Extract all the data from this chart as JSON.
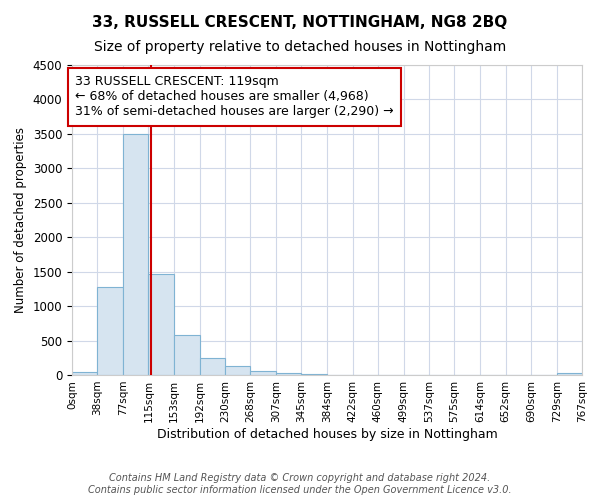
{
  "title": "33, RUSSELL CRESCENT, NOTTINGHAM, NG8 2BQ",
  "subtitle": "Size of property relative to detached houses in Nottingham",
  "xlabel": "Distribution of detached houses by size in Nottingham",
  "ylabel": "Number of detached properties",
  "bin_edges": [
    0,
    38,
    77,
    115,
    153,
    192,
    230,
    268,
    307,
    345,
    384,
    422,
    460,
    499,
    537,
    575,
    614,
    652,
    690,
    729,
    767
  ],
  "bin_counts": [
    40,
    1280,
    3500,
    1460,
    575,
    245,
    130,
    60,
    25,
    8,
    5,
    3,
    2,
    1,
    0,
    0,
    0,
    0,
    0,
    30
  ],
  "bar_color": "#d6e4f0",
  "bar_edge_color": "#7fb3d3",
  "vline_x": 119,
  "vline_color": "#cc0000",
  "annotation_text": "33 RUSSELL CRESCENT: 119sqm\n← 68% of detached houses are smaller (4,968)\n31% of semi-detached houses are larger (2,290) →",
  "annotation_box_color": "#ffffff",
  "annotation_box_edge": "#cc0000",
  "ylim": [
    0,
    4500
  ],
  "yticks": [
    0,
    500,
    1000,
    1500,
    2000,
    2500,
    3000,
    3500,
    4000,
    4500
  ],
  "tick_labels": [
    "0sqm",
    "38sqm",
    "77sqm",
    "115sqm",
    "153sqm",
    "192sqm",
    "230sqm",
    "268sqm",
    "307sqm",
    "345sqm",
    "384sqm",
    "422sqm",
    "460sqm",
    "499sqm",
    "537sqm",
    "575sqm",
    "614sqm",
    "652sqm",
    "690sqm",
    "729sqm",
    "767sqm"
  ],
  "footer": "Contains HM Land Registry data © Crown copyright and database right 2024.\nContains public sector information licensed under the Open Government Licence v3.0.",
  "bg_color": "#ffffff",
  "plot_bg_color": "#ffffff",
  "grid_color": "#d0d8e8",
  "title_fontsize": 11,
  "subtitle_fontsize": 10,
  "xlabel_fontsize": 9,
  "ylabel_fontsize": 8.5,
  "footer_fontsize": 7,
  "annot_fontsize": 9
}
